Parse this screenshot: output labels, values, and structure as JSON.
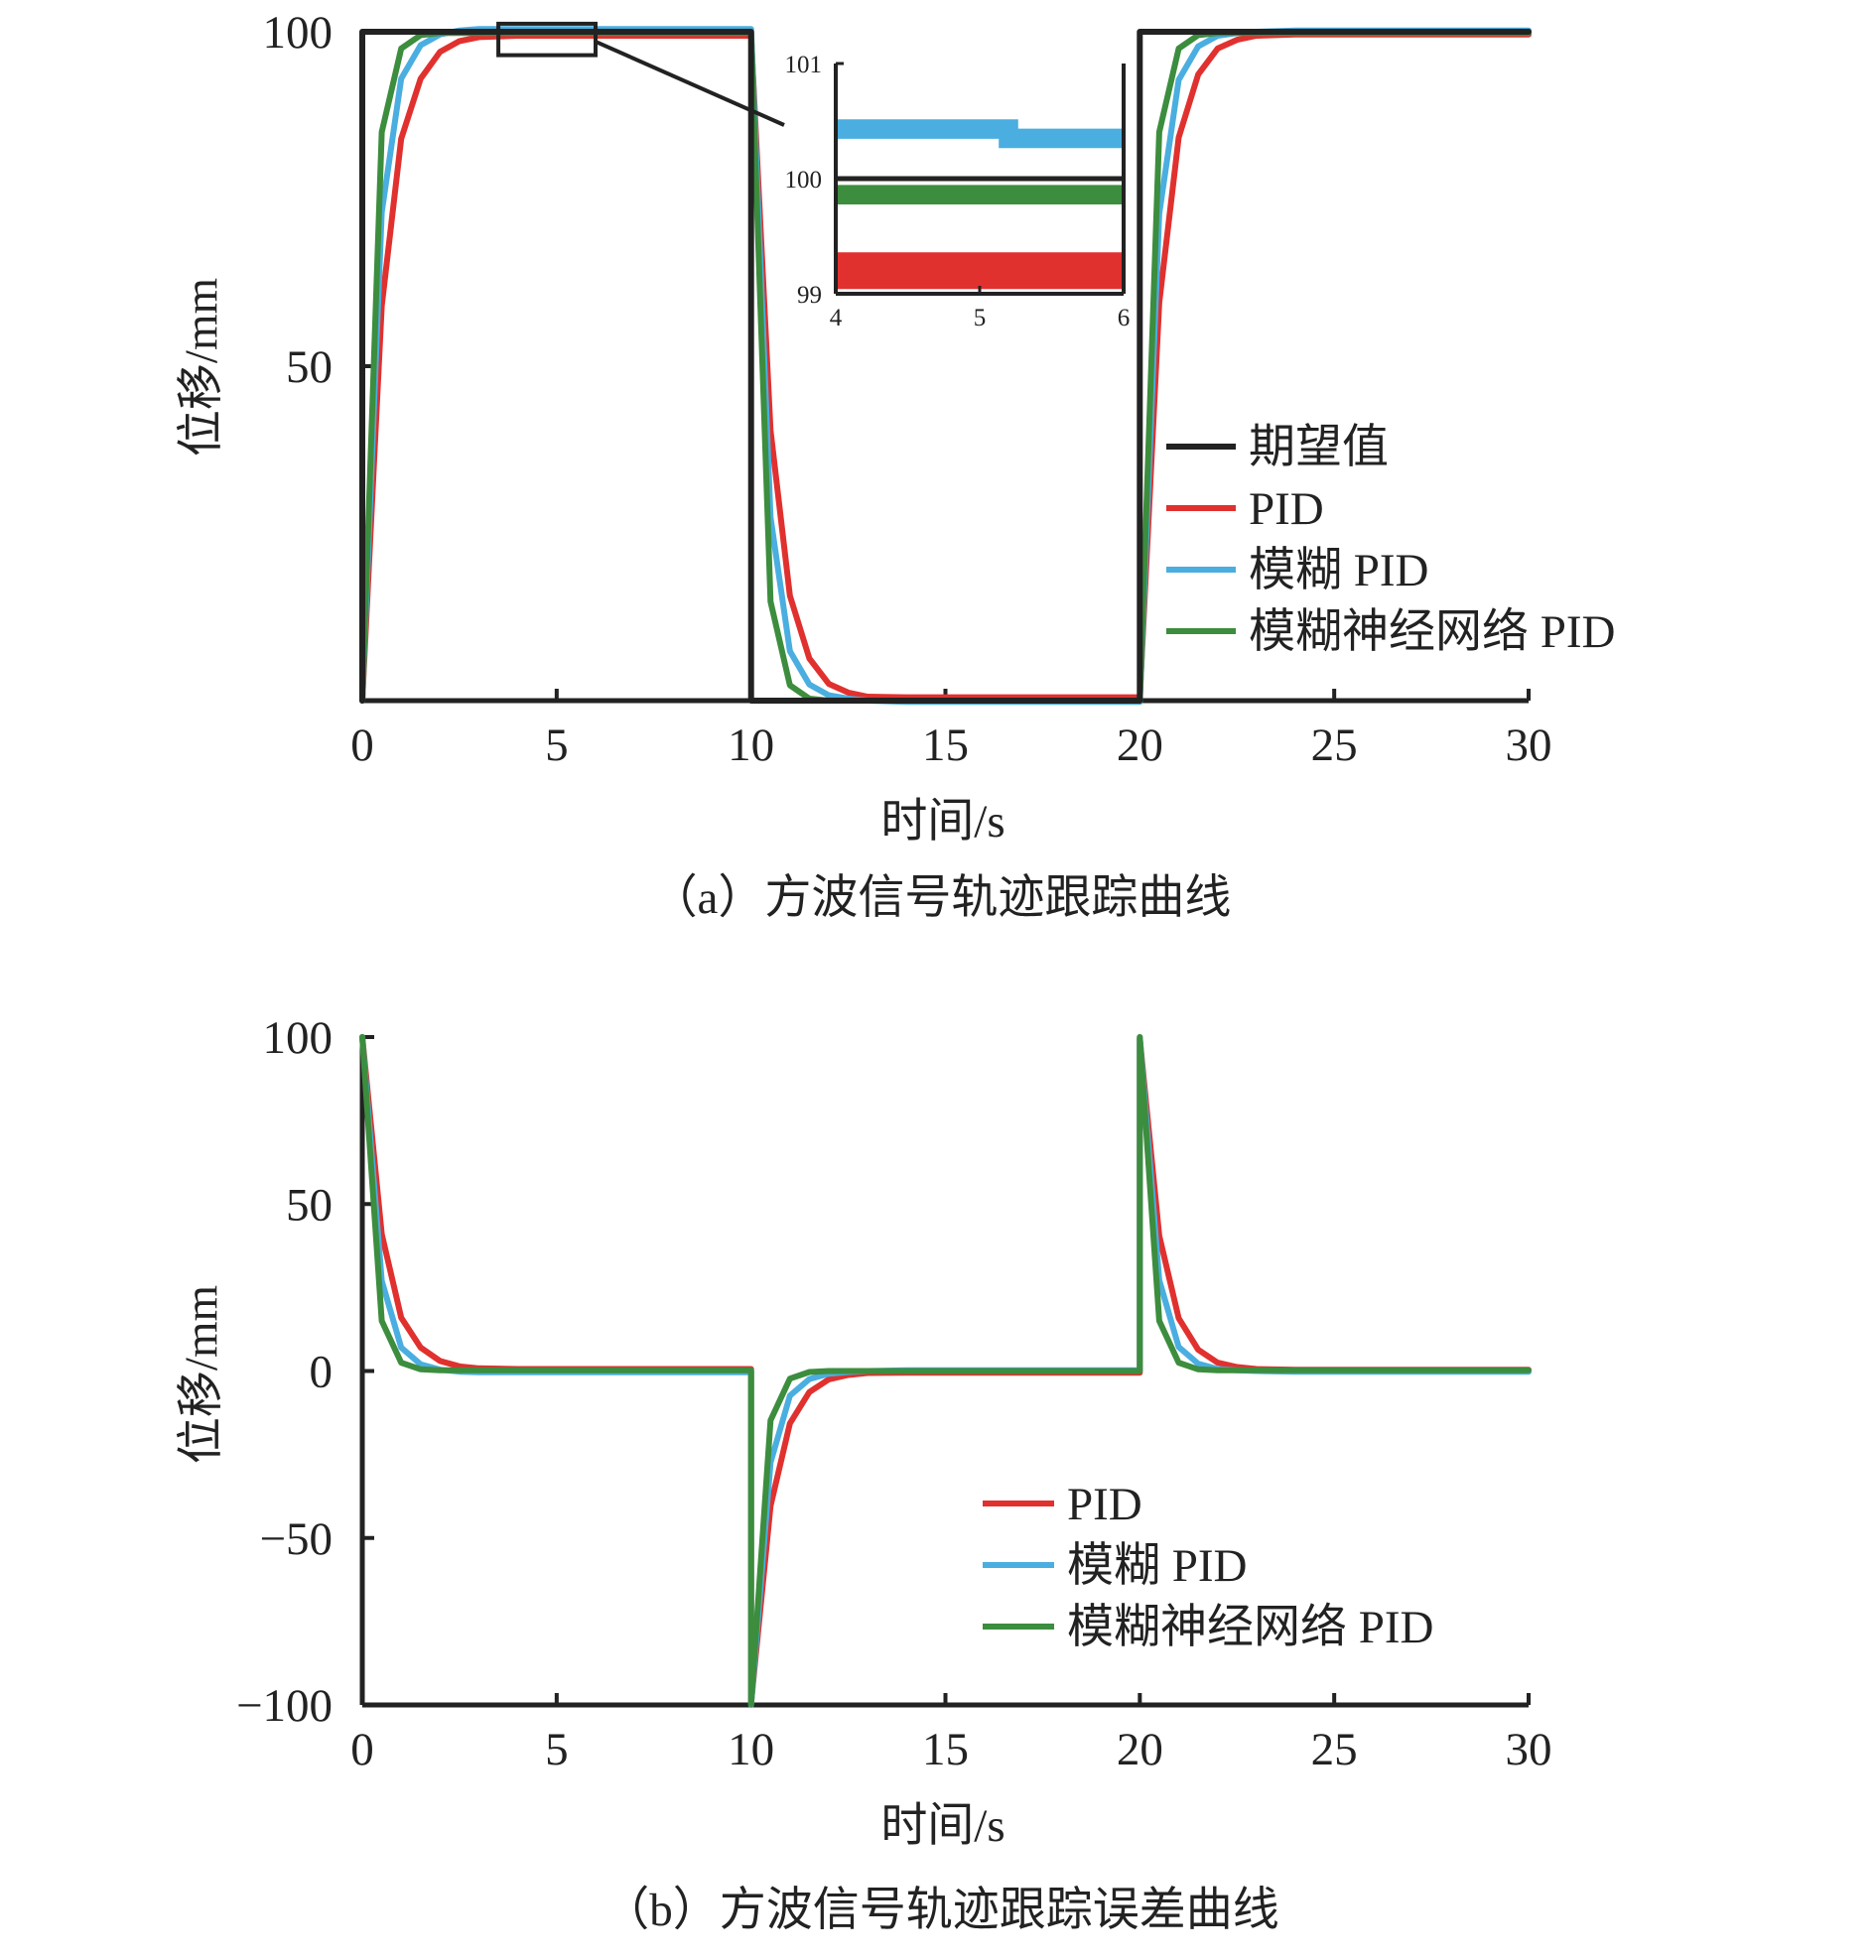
{
  "colors": {
    "desired": "#222222",
    "pid": "#e0312f",
    "fuzzy": "#4aaee0",
    "fnn": "#3c8d3e"
  },
  "chart_data": [
    {
      "type": "line",
      "caption": "（a）方波信号轨迹跟踪曲线",
      "xlabel": "时间/s",
      "ylabel": "位移/mm",
      "xlim": [
        0,
        30
      ],
      "ylim": [
        0,
        100
      ],
      "xticks": [
        "0",
        "5",
        "10",
        "15",
        "20",
        "25",
        "30"
      ],
      "yticks": [
        {
          "value": 50,
          "label": "50"
        },
        {
          "value": 100,
          "label": "100"
        }
      ],
      "legend_position": "right",
      "series": [
        {
          "key": "desired",
          "name": "期望值",
          "color": "#222222",
          "x": [
            0,
            0,
            10,
            10,
            20,
            20,
            30
          ],
          "y": [
            0,
            100,
            100,
            0,
            0,
            100,
            100
          ]
        },
        {
          "key": "pid",
          "name": "PID",
          "color": "#e0312f",
          "x": [
            0,
            0.5,
            1,
            1.5,
            2,
            2.5,
            3,
            4,
            5,
            6,
            8,
            10,
            10.5,
            11,
            11.5,
            12,
            12.5,
            13,
            14,
            15,
            17,
            20,
            20.5,
            21,
            21.5,
            22,
            22.5,
            23,
            24,
            25,
            27,
            30
          ],
          "y": [
            0,
            59,
            84,
            93,
            97,
            98.6,
            99.2,
            99.4,
            99.4,
            99.4,
            99.4,
            99.4,
            40.4,
            15.7,
            6.3,
            2.5,
            1.2,
            0.6,
            0.5,
            0.5,
            0.5,
            0.5,
            59.5,
            84.2,
            93.6,
            97.5,
            98.8,
            99.4,
            99.6,
            99.6,
            99.6,
            99.6
          ]
        },
        {
          "key": "fuzzy",
          "name": "模糊 PID",
          "color": "#4aaee0",
          "x": [
            0,
            0.5,
            1,
            1.5,
            2,
            2.5,
            3,
            4,
            5,
            6,
            8,
            10,
            10.5,
            11,
            11.5,
            12,
            12.5,
            13,
            14,
            15,
            17,
            20,
            20.5,
            21,
            21.5,
            22,
            22.5,
            23,
            24,
            25,
            27,
            30
          ],
          "y": [
            0,
            73,
            93,
            98,
            99.6,
            100.2,
            100.4,
            100.4,
            100.4,
            100.4,
            100.4,
            100.4,
            27.4,
            7.4,
            2.4,
            0.8,
            0.3,
            0,
            -0.2,
            -0.2,
            -0.2,
            -0.2,
            72.8,
            92.8,
            97.8,
            99.4,
            99.8,
            100,
            100.2,
            100.2,
            100.2,
            100.2
          ]
        },
        {
          "key": "fnn",
          "name": "模糊神经网络 PID",
          "color": "#3c8d3e",
          "x": [
            0,
            0.5,
            1,
            1.5,
            2,
            2.5,
            3,
            4,
            5,
            6,
            8,
            10,
            10.5,
            11,
            11.5,
            12,
            12.5,
            13,
            14,
            15,
            17,
            20,
            20.5,
            21,
            21.5,
            22,
            22.5,
            23,
            24,
            25,
            27,
            30
          ],
          "y": [
            0,
            85,
            97.5,
            99.5,
            99.8,
            99.8,
            99.8,
            99.8,
            99.8,
            99.8,
            99.8,
            99.8,
            14.8,
            2.3,
            0.3,
            0,
            0,
            0,
            0,
            0,
            0,
            0,
            85,
            97.5,
            99.5,
            99.8,
            99.8,
            99.8,
            99.8,
            99.8,
            99.8,
            99.8
          ]
        }
      ],
      "inset": {
        "xlim": [
          4,
          6
        ],
        "ylim": [
          99,
          101
        ],
        "xticks": [
          "4",
          "5",
          "6"
        ],
        "yticks": [
          {
            "value": 99,
            "label": "99"
          },
          {
            "value": 100,
            "label": "100"
          },
          {
            "value": 101,
            "label": "101"
          }
        ],
        "zoom_box": {
          "x0": 3.5,
          "x1": 6.0,
          "y0": 96.5,
          "y1": 101.2
        },
        "series": [
          {
            "key": "desired",
            "x": [
              4,
              6
            ],
            "y": [
              100,
              100
            ]
          },
          {
            "key": "fuzzy",
            "x": [
              4,
              5.2,
              5.2,
              6
            ],
            "y": [
              100.43,
              100.43,
              100.35,
              100.35
            ],
            "band": 0.1
          },
          {
            "key": "fnn",
            "x": [
              4,
              6
            ],
            "y": [
              99.86,
              99.86
            ],
            "band": 0.1
          },
          {
            "key": "pid",
            "x": [
              4,
              6
            ],
            "y": [
              99.2,
              99.2
            ],
            "band": 0.25
          }
        ]
      }
    },
    {
      "type": "line",
      "caption": "（b）方波信号轨迹跟踪误差曲线",
      "xlabel": "时间/s",
      "ylabel": "位移/mm",
      "xlim": [
        0,
        30
      ],
      "ylim": [
        -100,
        100
      ],
      "xticks": [
        "0",
        "5",
        "10",
        "15",
        "20",
        "25",
        "30"
      ],
      "yticks": [
        {
          "value": -100,
          "label": "−100"
        },
        {
          "value": -50,
          "label": "−50"
        },
        {
          "value": 0,
          "label": "0"
        },
        {
          "value": 50,
          "label": "50"
        },
        {
          "value": 100,
          "label": "100"
        }
      ],
      "legend_position": "lower-right",
      "series": [
        {
          "key": "pid",
          "name": "PID",
          "color": "#e0312f",
          "x": [
            0,
            0.5,
            1,
            1.5,
            2,
            2.5,
            3,
            4,
            6,
            10,
            10,
            10.5,
            11,
            11.5,
            12,
            12.5,
            13,
            14,
            17,
            20,
            20,
            20.5,
            21,
            21.5,
            22,
            22.5,
            23,
            24,
            27,
            30
          ],
          "y": [
            100,
            41,
            16,
            7,
            3,
            1.4,
            0.8,
            0.6,
            0.6,
            0.6,
            -99.4,
            -40.4,
            -15.7,
            -6.3,
            -2.5,
            -1.2,
            -0.6,
            -0.5,
            -0.5,
            -0.5,
            99.5,
            40.5,
            15.8,
            6.4,
            2.5,
            1.2,
            0.6,
            0.4,
            0.4,
            0.4
          ]
        },
        {
          "key": "fuzzy",
          "name": "模糊 PID",
          "color": "#4aaee0",
          "x": [
            0,
            0.5,
            1,
            1.5,
            2,
            2.5,
            3,
            4,
            6,
            10,
            10,
            10.5,
            11,
            11.5,
            12,
            12.5,
            13,
            14,
            17,
            20,
            20,
            20.5,
            21,
            21.5,
            22,
            22.5,
            23,
            24,
            27,
            30
          ],
          "y": [
            100,
            27,
            7,
            2,
            0.4,
            -0.2,
            -0.4,
            -0.4,
            -0.4,
            -0.4,
            -100,
            -27.4,
            -7.4,
            -2.4,
            -0.8,
            -0.3,
            0,
            0.2,
            0.2,
            0.2,
            100,
            27.2,
            7.2,
            2.2,
            0.6,
            0.2,
            0,
            -0.2,
            -0.2,
            -0.2
          ]
        },
        {
          "key": "fnn",
          "name": "模糊神经网络 PID",
          "color": "#3c8d3e",
          "x": [
            0,
            0.5,
            1,
            1.5,
            2,
            2.5,
            3,
            4,
            6,
            10,
            10,
            10.5,
            11,
            11.5,
            12,
            12.5,
            13,
            14,
            17,
            20,
            20,
            20.5,
            21,
            21.5,
            22,
            22.5,
            23,
            24,
            27,
            30
          ],
          "y": [
            100,
            15,
            2.5,
            0.5,
            0.2,
            0.2,
            0.2,
            0.2,
            0.2,
            0.2,
            -99.8,
            -14.8,
            -2.3,
            -0.3,
            0,
            0,
            0,
            0,
            0,
            0,
            100,
            15,
            2.5,
            0.5,
            0.2,
            0.2,
            0.2,
            0.2,
            0.2,
            0.2
          ]
        }
      ]
    }
  ]
}
